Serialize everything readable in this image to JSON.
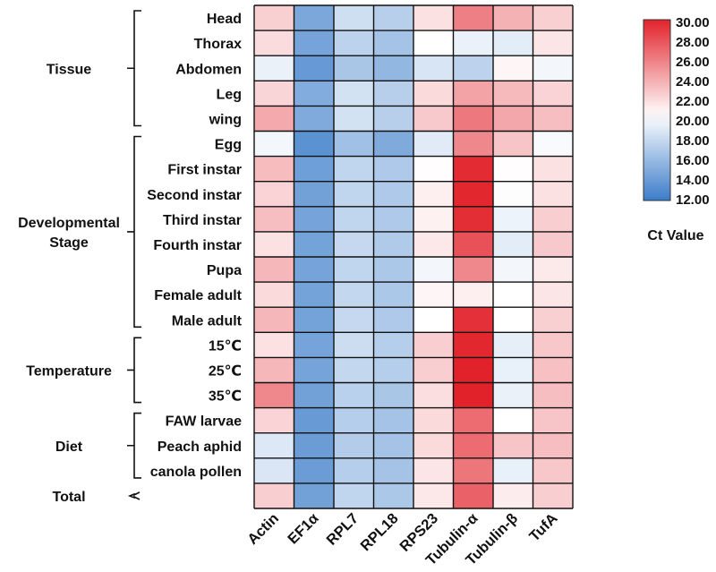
{
  "chart_data": {
    "type": "heatmap",
    "title": "",
    "colorbar_label": "Ct Value",
    "colorbar_range": [
      12,
      30
    ],
    "colorbar_ticks": [
      "30.00",
      "28.00",
      "26.00",
      "24.00",
      "22.00",
      "20.00",
      "18.00",
      "16.00",
      "14.00",
      "12.00"
    ],
    "color_scale": {
      "low": "#3a7cc9",
      "mid": "#ffffff",
      "high": "#e2222b",
      "mid_value": 20.5
    },
    "genes": [
      "Actin",
      "EF1α",
      "RPL7",
      "RPL18",
      "RPS23",
      "Tubulin-α",
      "Tubulin-β",
      "TufA"
    ],
    "groups": [
      {
        "label": "Tissue",
        "rows": 5
      },
      {
        "label_lines": [
          "Developmental",
          "Stage"
        ],
        "rows": 8
      },
      {
        "label": "Temperature",
        "rows": 3
      },
      {
        "label": "Diet",
        "rows": 3
      },
      {
        "label": "Total",
        "rows": 1
      }
    ],
    "samples": [
      "Head",
      "Thorax",
      "Abdomen",
      "Leg",
      "wing",
      "Egg",
      "First instar",
      "Second instar",
      "Third instar",
      "Fourth instar",
      "Pupa",
      "Female adult",
      "Male adult",
      "15℃",
      "25℃",
      "35℃",
      "FAW larvae",
      "Peach aphid",
      "canola pollen",
      ""
    ],
    "values": [
      [
        22.5,
        14.8,
        18.4,
        17.4,
        21.8,
        26.0,
        23.8,
        22.5
      ],
      [
        22.0,
        14.6,
        17.6,
        16.6,
        20.5,
        19.6,
        19.3,
        21.6
      ],
      [
        19.6,
        13.9,
        16.8,
        15.8,
        18.8,
        17.6,
        20.9,
        20.0
      ],
      [
        22.3,
        15.1,
        18.6,
        17.4,
        22.1,
        24.5,
        23.5,
        22.4
      ],
      [
        24.2,
        15.0,
        18.6,
        17.4,
        22.8,
        26.3,
        24.3,
        23.3
      ],
      [
        20.0,
        13.4,
        16.4,
        15.0,
        19.2,
        25.6,
        23.0,
        20.2
      ],
      [
        23.4,
        14.3,
        17.8,
        17.0,
        20.6,
        29.6,
        20.6,
        21.8
      ],
      [
        22.4,
        14.4,
        17.8,
        17.0,
        21.2,
        29.8,
        20.4,
        21.8
      ],
      [
        23.3,
        14.6,
        17.8,
        17.0,
        21.1,
        29.5,
        19.7,
        22.6
      ],
      [
        21.8,
        14.5,
        18.0,
        17.1,
        21.5,
        28.0,
        19.3,
        22.8
      ],
      [
        23.6,
        14.6,
        17.8,
        16.9,
        20.0,
        25.6,
        20.0,
        21.4
      ],
      [
        22.1,
        14.5,
        17.9,
        16.9,
        20.9,
        21.2,
        20.5,
        21.6
      ],
      [
        23.6,
        14.5,
        18.0,
        17.0,
        20.5,
        29.4,
        20.5,
        22.5
      ],
      [
        21.8,
        14.6,
        18.3,
        17.3,
        22.6,
        29.8,
        19.4,
        22.9
      ],
      [
        23.6,
        14.6,
        17.9,
        17.3,
        22.6,
        30.0,
        19.5,
        23.2
      ],
      [
        25.6,
        14.4,
        17.5,
        16.8,
        21.9,
        30.0,
        19.6,
        23.3
      ],
      [
        22.4,
        14.0,
        17.3,
        16.6,
        22.1,
        26.8,
        20.5,
        23.0
      ],
      [
        19.0,
        14.1,
        17.2,
        16.6,
        22.1,
        26.8,
        23.0,
        23.3
      ],
      [
        18.9,
        14.1,
        17.3,
        16.6,
        21.6,
        26.4,
        19.5,
        22.9
      ],
      [
        22.6,
        14.4,
        17.8,
        16.9,
        21.5,
        27.3,
        21.3,
        22.6
      ]
    ]
  }
}
